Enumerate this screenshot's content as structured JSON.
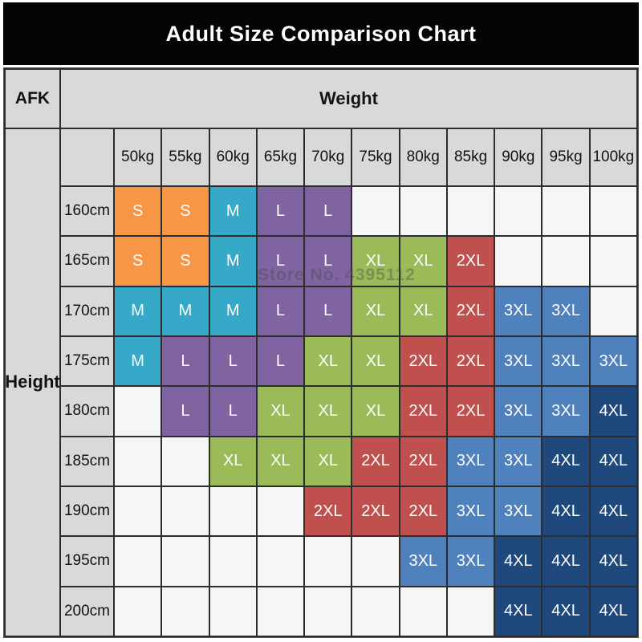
{
  "title": "Adult Size Comparison Chart",
  "corner_label": "AFK",
  "watermark": "Store No. 4395112",
  "chart_data": {
    "type": "heatmap",
    "title": "Adult Size Comparison Chart",
    "x_axis_label": "Weight",
    "y_axis_label": "Height",
    "columns": [
      "50kg",
      "55kg",
      "60kg",
      "65kg",
      "70kg",
      "75kg",
      "80kg",
      "85kg",
      "90kg",
      "95kg",
      "100kg"
    ],
    "rows": [
      "160cm",
      "165cm",
      "170cm",
      "175cm",
      "180cm",
      "185cm",
      "190cm",
      "195cm",
      "200cm"
    ],
    "sizes": [
      "S",
      "M",
      "L",
      "XL",
      "2XL",
      "3XL",
      "4XL"
    ],
    "size_colors": {
      "S": "#F79646",
      "M": "#36A9C9",
      "L": "#8064A2",
      "XL": "#9BBB59",
      "2XL": "#C0504D",
      "3XL": "#4F81BD",
      "4XL": "#1F497D"
    },
    "header_bg": "#D9D9D9",
    "title_bg": "#040404",
    "grid": [
      [
        "S",
        "S",
        "M",
        "L",
        "L",
        "",
        "",
        "",
        "",
        "",
        ""
      ],
      [
        "S",
        "S",
        "M",
        "L",
        "L",
        "XL",
        "XL",
        "2XL",
        "",
        "",
        ""
      ],
      [
        "M",
        "M",
        "M",
        "L",
        "L",
        "XL",
        "XL",
        "2XL",
        "3XL",
        "3XL",
        ""
      ],
      [
        "M",
        "L",
        "L",
        "L",
        "XL",
        "XL",
        "2XL",
        "2XL",
        "3XL",
        "3XL",
        "3XL"
      ],
      [
        "",
        "L",
        "L",
        "XL",
        "XL",
        "XL",
        "2XL",
        "2XL",
        "3XL",
        "3XL",
        "4XL"
      ],
      [
        "",
        "",
        "XL",
        "XL",
        "XL",
        "2XL",
        "2XL",
        "3XL",
        "3XL",
        "4XL",
        "4XL"
      ],
      [
        "",
        "",
        "",
        "",
        "2XL",
        "2XL",
        "2XL",
        "3XL",
        "3XL",
        "4XL",
        "4XL"
      ],
      [
        "",
        "",
        "",
        "",
        "",
        "",
        "3XL",
        "3XL",
        "4XL",
        "4XL",
        "4XL"
      ],
      [
        "",
        "",
        "",
        "",
        "",
        "",
        "",
        "",
        "4XL",
        "4XL",
        "4XL"
      ]
    ]
  }
}
